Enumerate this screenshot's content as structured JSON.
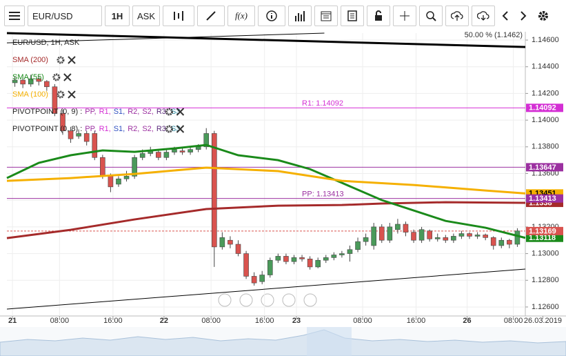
{
  "toolbar": {
    "symbol": "EUR/USD",
    "timeframe": "1H",
    "price_type": "ASK",
    "function_label": "f(x)"
  },
  "legend": {
    "title": "EUR/USD, 1H, ASK",
    "indicators": [
      {
        "name": "SMA (200)",
        "color": "#a52a2a"
      },
      {
        "name": "SMA (55)",
        "color": "#1a8a1a"
      },
      {
        "name": "SMA (100)",
        "color": "#f5b000"
      }
    ],
    "pivots": [
      {
        "name": "PIVOTPOINT (0, 9) :",
        "tokens": [
          {
            "text": "PP,",
            "color": "#9b30a0"
          },
          {
            "text": "R1,",
            "color": "#d42fd4"
          },
          {
            "text": "S1,",
            "color": "#3050c0"
          },
          {
            "text": "R2,",
            "color": "#9b30a0"
          },
          {
            "text": "S2,",
            "color": "#9b30a0"
          },
          {
            "text": "R3,",
            "color": "#5a2a7a"
          },
          {
            "text": "S3",
            "color": "#2a8aa0"
          }
        ]
      },
      {
        "name": "PIVOTPOINT (0, 8) :",
        "tokens": [
          {
            "text": "PP,",
            "color": "#9b30a0"
          },
          {
            "text": "R1,",
            "color": "#d42fd4"
          },
          {
            "text": "S1,",
            "color": "#3050c0"
          },
          {
            "text": "R2,",
            "color": "#9b30a0"
          },
          {
            "text": "S2,",
            "color": "#9b30a0"
          },
          {
            "text": "R3,",
            "color": "#5a2a7a"
          },
          {
            "text": "S3",
            "color": "#2a8aa0"
          }
        ]
      }
    ]
  },
  "chart_data": {
    "type": "candlestick",
    "up_color": "#4a9a5a",
    "down_color": "#d9534f",
    "open": [
      1.1428,
      1.143,
      1.1427,
      1.1431,
      1.1429,
      1.1425,
      1.1405,
      1.1392,
      1.1388,
      1.139,
      1.139,
      1.1372,
      1.1358,
      1.1352,
      1.1356,
      1.1358,
      1.1372,
      1.1375,
      1.1376,
      1.1372,
      1.1376,
      1.1377,
      1.1376,
      1.1378,
      1.138,
      1.139,
      1.1305,
      1.131,
      1.1307,
      1.13,
      1.1283,
      1.1279,
      1.1284,
      1.1295,
      1.1298,
      1.1294,
      1.1297,
      1.1296,
      1.129,
      1.1295,
      1.1297,
      1.1299,
      1.13,
      1.1303,
      1.1309,
      1.1306,
      1.132,
      1.131,
      1.1318,
      1.1322,
      1.1316,
      1.131,
      1.1317,
      1.1311,
      1.1312,
      1.131,
      1.1313,
      1.1315,
      1.1313,
      1.1314,
      1.1312,
      1.1306,
      1.131,
      1.1307
    ],
    "high": [
      1.1433,
      1.1432,
      1.1434,
      1.1433,
      1.143,
      1.1427,
      1.1408,
      1.1395,
      1.1393,
      1.1392,
      1.1392,
      1.1374,
      1.136,
      1.1358,
      1.1362,
      1.1374,
      1.1378,
      1.138,
      1.1378,
      1.1378,
      1.138,
      1.138,
      1.138,
      1.1382,
      1.1394,
      1.1392,
      1.1316,
      1.1313,
      1.131,
      1.1302,
      1.1286,
      1.1287,
      1.1297,
      1.13,
      1.13,
      1.1299,
      1.1299,
      1.1298,
      1.1297,
      1.1299,
      1.1301,
      1.1302,
      1.1306,
      1.1312,
      1.1315,
      1.1323,
      1.1322,
      1.1323,
      1.1326,
      1.1324,
      1.1318,
      1.132,
      1.1318,
      1.1315,
      1.1314,
      1.1315,
      1.1317,
      1.1316,
      1.1316,
      1.1315,
      1.1313,
      1.1312,
      1.1311,
      1.1319
    ],
    "low": [
      1.1425,
      1.1424,
      1.1425,
      1.1426,
      1.1422,
      1.1403,
      1.1389,
      1.1383,
      1.1386,
      1.1381,
      1.137,
      1.1356,
      1.1346,
      1.135,
      1.1354,
      1.1356,
      1.137,
      1.1373,
      1.137,
      1.137,
      1.1374,
      1.1374,
      1.1374,
      1.1376,
      1.1378,
      1.129,
      1.1303,
      1.1304,
      1.1298,
      1.1281,
      1.1276,
      1.1277,
      1.1282,
      1.1293,
      1.1292,
      1.1292,
      1.1294,
      1.1288,
      1.1289,
      1.1293,
      1.1295,
      1.1297,
      1.1294,
      1.1301,
      1.1306,
      1.1303,
      1.1308,
      1.1308,
      1.1315,
      1.1313,
      1.1308,
      1.1308,
      1.1309,
      1.1309,
      1.1308,
      1.1308,
      1.1311,
      1.1311,
      1.1311,
      1.131,
      1.1303,
      1.1304,
      1.1304,
      1.1305
    ],
    "close": [
      1.143,
      1.1427,
      1.1431,
      1.1429,
      1.1425,
      1.1405,
      1.1392,
      1.1386,
      1.139,
      1.1384,
      1.1372,
      1.1358,
      1.135,
      1.1356,
      1.1358,
      1.1372,
      1.1375,
      1.1377,
      1.1372,
      1.1376,
      1.1378,
      1.1376,
      1.1378,
      1.138,
      1.139,
      1.1305,
      1.1312,
      1.1307,
      1.13,
      1.1283,
      1.1278,
      1.1284,
      1.1295,
      1.1298,
      1.1294,
      1.1297,
      1.1296,
      1.129,
      1.1295,
      1.1297,
      1.1299,
      1.13,
      1.1303,
      1.1309,
      1.1312,
      1.132,
      1.131,
      1.132,
      1.1322,
      1.1316,
      1.131,
      1.1318,
      1.1311,
      1.1312,
      1.131,
      1.1313,
      1.1315,
      1.1313,
      1.1314,
      1.1312,
      1.1306,
      1.131,
      1.1307,
      1.1317
    ],
    "series": [
      {
        "name": "SMA (200)",
        "color": "#a52a2a",
        "x": [
          -1,
          7,
          15,
          24,
          33,
          41,
          46,
          54,
          64
        ],
        "values": [
          1.13116,
          1.13178,
          1.13256,
          1.13334,
          1.13359,
          1.13364,
          1.13375,
          1.13385,
          1.1338
        ]
      },
      {
        "name": "SMA (55)",
        "color": "#1a8a1a",
        "x": [
          -1,
          3,
          7,
          11,
          15,
          20,
          24,
          28,
          33,
          37,
          41,
          46,
          50,
          54,
          59,
          64
        ],
        "values": [
          1.13566,
          1.1368,
          1.13737,
          1.13773,
          1.13762,
          1.13788,
          1.13814,
          1.13737,
          1.137,
          1.13633,
          1.1353,
          1.13401,
          1.13323,
          1.13245,
          1.13194,
          1.13118
        ]
      },
      {
        "name": "SMA (100)",
        "color": "#f5b000",
        "x": [
          -1,
          7,
          15,
          24,
          33,
          41,
          50,
          59,
          64
        ],
        "values": [
          1.13545,
          1.13566,
          1.13597,
          1.13644,
          1.13618,
          1.13545,
          1.13514,
          1.13473,
          1.13451
        ]
      }
    ],
    "trendlines": [
      {
        "color": "#000",
        "width": 3,
        "x": [
          -1,
          64
        ],
        "values": [
          1.14652,
          1.14548
        ]
      },
      {
        "color": "#000",
        "width": 1,
        "x": [
          -1,
          64
        ],
        "values": [
          1.12584,
          1.12884
        ]
      },
      {
        "color": "#000",
        "width": 1,
        "x": [
          -1,
          38.8
        ],
        "values": [
          1.14579,
          1.14652
        ]
      }
    ],
    "levels": [
      {
        "label": "R1: 1.14092",
        "value": 1.14092,
        "color": "#d42fd4",
        "start": 36
      },
      {
        "value": 1.13647,
        "color": "#9b30a0"
      },
      {
        "label": "PP: 1.13413",
        "value": 1.13413,
        "color": "#9b30a0",
        "start": 36
      },
      {
        "value": 1.13169,
        "color": "#d9534f",
        "dashed": true
      }
    ],
    "fib_label": "50.00 % (1.1462)",
    "xlim": [
      -1,
      64
    ],
    "ylim": [
      1.12548,
      1.14652
    ],
    "yticks": [
      {
        "value": 1.126,
        "label": "1.12600"
      },
      {
        "value": 1.128,
        "label": "1.12800"
      },
      {
        "value": 1.13,
        "label": "1.13000"
      },
      {
        "value": 1.132,
        "label": "1.13200"
      },
      {
        "value": 1.134,
        "label": "1.13400"
      },
      {
        "value": 1.136,
        "label": "1.13600"
      },
      {
        "value": 1.138,
        "label": "1.13800"
      },
      {
        "value": 1.14,
        "label": "1.14000"
      },
      {
        "value": 1.142,
        "label": "1.14200"
      },
      {
        "value": 1.144,
        "label": "1.14400"
      },
      {
        "value": 1.146,
        "label": "1.14600"
      }
    ],
    "xticks": [
      {
        "value": -0.3,
        "label": "21"
      },
      {
        "value": 5.6,
        "label": "08:00"
      },
      {
        "value": 12.3,
        "label": "16:00"
      },
      {
        "value": 18.7,
        "label": "22"
      },
      {
        "value": 24.6,
        "label": "08:00"
      },
      {
        "value": 31.3,
        "label": "16:00"
      },
      {
        "value": 35.3,
        "label": "23"
      },
      {
        "value": 43.6,
        "label": "08:00"
      },
      {
        "value": 50.3,
        "label": "16:00"
      },
      {
        "value": 56.7,
        "label": "26"
      },
      {
        "value": 62.5,
        "label": "08:00"
      },
      {
        "value": 66.2,
        "label": "26.03.2019"
      }
    ],
    "grid": true
  }
}
